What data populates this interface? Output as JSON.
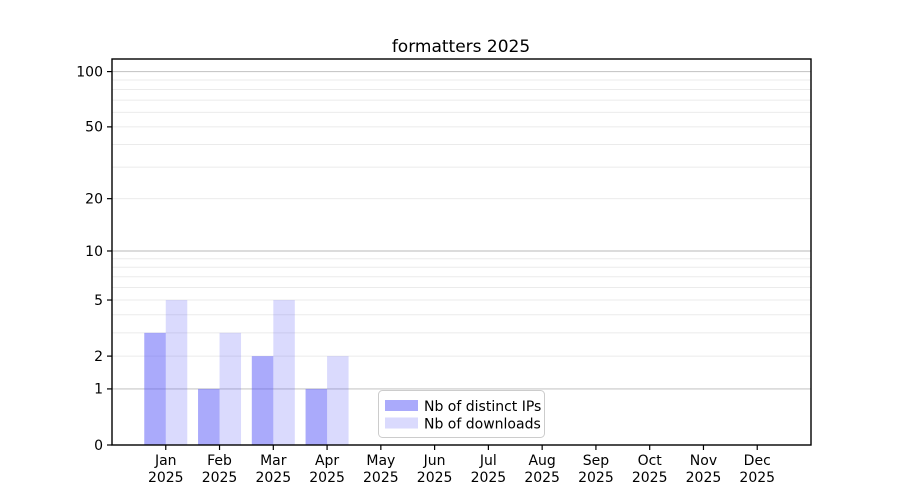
{
  "chart_data": {
    "type": "bar",
    "title": "formatters 2025",
    "categories": [
      "Jan",
      "Feb",
      "Mar",
      "Apr",
      "May",
      "Jun",
      "Jul",
      "Aug",
      "Sep",
      "Oct",
      "Nov",
      "Dec"
    ],
    "x_year_suffix": "2025",
    "series": [
      {
        "name": "Nb of distinct IPs",
        "color": "#5555f7",
        "alpha": 0.5,
        "values": [
          3,
          1,
          2,
          1,
          0,
          0,
          0,
          0,
          0,
          0,
          0,
          0
        ]
      },
      {
        "name": "Nb of downloads",
        "color": "#5555f7",
        "alpha": 0.22,
        "values": [
          5,
          3,
          5,
          2,
          0,
          0,
          0,
          0,
          0,
          0,
          0,
          0
        ]
      }
    ],
    "y_axis": {
      "scale": "log10(1+x)",
      "tick_values": [
        0,
        1,
        2,
        5,
        10,
        20,
        50,
        100
      ],
      "major_grid_values": [
        1,
        10,
        100
      ],
      "minor_grid_values": [
        2,
        3,
        4,
        5,
        6,
        7,
        8,
        9,
        20,
        30,
        40,
        50,
        60,
        70,
        80,
        90
      ],
      "range_max": 117
    },
    "legend": {
      "position": "lower center"
    },
    "colors": {
      "background": "#ffffff",
      "axis": "#000000",
      "grid_major": "#c8c8c8",
      "grid_minor": "#ebebeb",
      "legend_border": "#cccccc",
      "bar_base": "#5555f7"
    }
  }
}
